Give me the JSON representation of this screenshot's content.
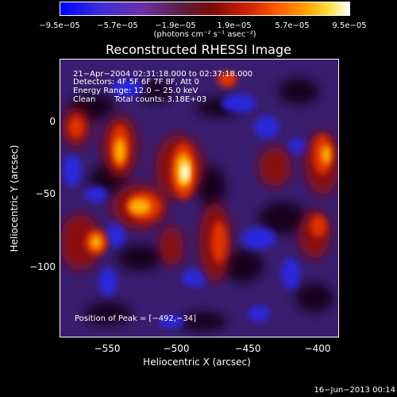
{
  "colorbar": {
    "ticks": [
      "−9.5e−05",
      "−5.7e−05",
      "−1.9e−05",
      "1.9e−05",
      "5.7e−05",
      "9.5e−05"
    ],
    "units": "(photons cm⁻² s⁻¹ asec⁻²)"
  },
  "title": "Reconstructed RHESSI Image",
  "info": {
    "time_range": "21−Apr−2004 02:31:18.000 to 02:37:18.000",
    "detectors": "Detectors: 4F 5F 6F 7F 8F, Att 0",
    "energy_range": "Energy Range: 12.0 − 25.0 keV",
    "algorithm": "Clean",
    "total_counts": "Total counts: 3.18E+03",
    "peak_position": "Position of Peak = [−492,−34]"
  },
  "axes": {
    "xlabel": "Heliocentric X (arcsec)",
    "ylabel": "Heliocentric Y (arcsec)",
    "xticks": [
      "−550",
      "−500",
      "−450",
      "−400"
    ],
    "yticks": [
      "0",
      "−50",
      "−100"
    ]
  },
  "footer": "16−Jun−2013 00:14"
}
